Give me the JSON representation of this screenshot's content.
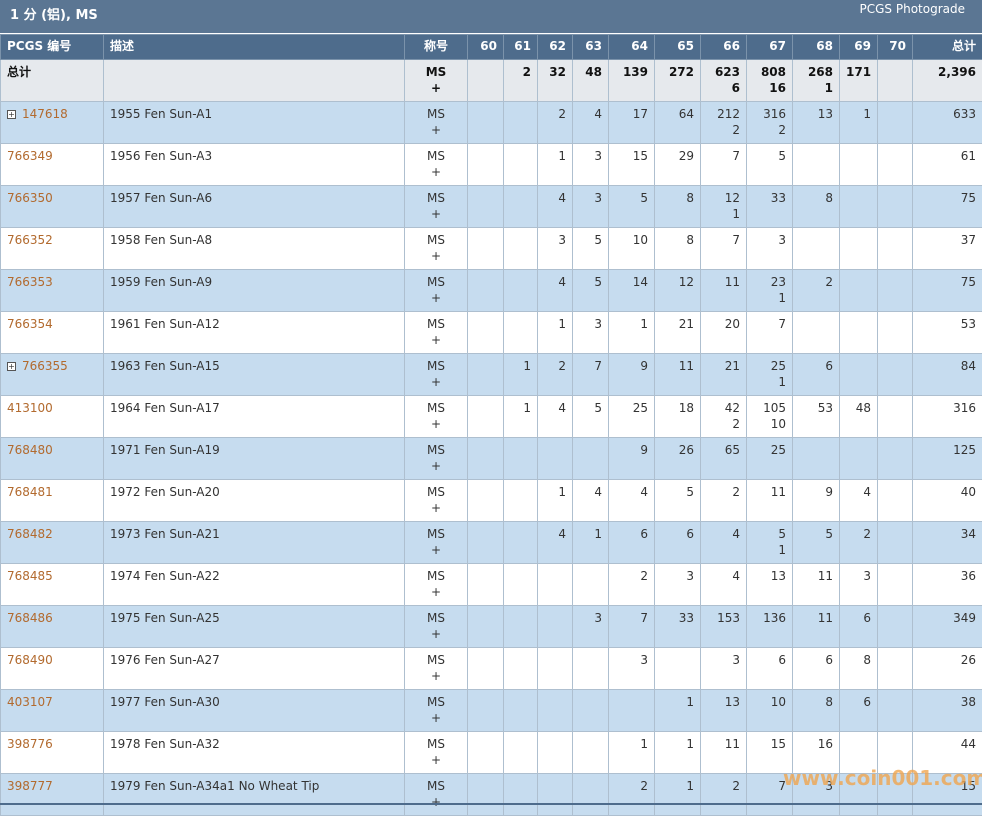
{
  "header": {
    "title": "1 分 (铝), MS",
    "photograde_link": "PCGS Photograde"
  },
  "columns": {
    "pcgs_no": "PCGS 编号",
    "description": "描述",
    "designation": "称号",
    "grades": [
      "60",
      "61",
      "62",
      "63",
      "64",
      "65",
      "66",
      "67",
      "68",
      "69",
      "70"
    ],
    "total": "总计"
  },
  "total_row": {
    "label": "总计",
    "designation": "MS",
    "plus": "+",
    "grades": [
      [
        "",
        ""
      ],
      [
        "2",
        ""
      ],
      [
        "32",
        ""
      ],
      [
        "48",
        ""
      ],
      [
        "139",
        ""
      ],
      [
        "272",
        ""
      ],
      [
        "623",
        "6"
      ],
      [
        "808",
        "16"
      ],
      [
        "268",
        "1"
      ],
      [
        "171",
        ""
      ],
      [
        "",
        ""
      ]
    ],
    "total": "2,396"
  },
  "rows": [
    {
      "id": "147618",
      "desc": "1955 Fen Sun-A1",
      "designation": "MS",
      "plus": "+",
      "grades": [
        [
          "",
          ""
        ],
        [
          "",
          ""
        ],
        [
          "2",
          ""
        ],
        [
          "4",
          ""
        ],
        [
          "17",
          ""
        ],
        [
          "64",
          ""
        ],
        [
          "212",
          "2"
        ],
        [
          "316",
          "2"
        ],
        [
          "13",
          ""
        ],
        [
          "1",
          ""
        ],
        [
          "",
          ""
        ]
      ],
      "total": "633",
      "expand": "+"
    },
    {
      "id": "766349",
      "desc": "1956 Fen Sun-A3",
      "designation": "MS",
      "plus": "+",
      "grades": [
        [
          "",
          ""
        ],
        [
          "",
          ""
        ],
        [
          "1",
          ""
        ],
        [
          "3",
          ""
        ],
        [
          "15",
          ""
        ],
        [
          "29",
          ""
        ],
        [
          "7",
          ""
        ],
        [
          "5",
          ""
        ],
        [
          "",
          ""
        ],
        [
          "",
          ""
        ],
        [
          "",
          ""
        ]
      ],
      "total": "61"
    },
    {
      "id": "766350",
      "desc": "1957 Fen Sun-A6",
      "designation": "MS",
      "plus": "+",
      "grades": [
        [
          "",
          ""
        ],
        [
          "",
          ""
        ],
        [
          "4",
          ""
        ],
        [
          "3",
          ""
        ],
        [
          "5",
          ""
        ],
        [
          "8",
          ""
        ],
        [
          "12",
          "1"
        ],
        [
          "33",
          ""
        ],
        [
          "8",
          ""
        ],
        [
          "",
          ""
        ],
        [
          "",
          ""
        ]
      ],
      "total": "75"
    },
    {
      "id": "766352",
      "desc": "1958 Fen Sun-A8",
      "designation": "MS",
      "plus": "+",
      "grades": [
        [
          "",
          ""
        ],
        [
          "",
          ""
        ],
        [
          "3",
          ""
        ],
        [
          "5",
          ""
        ],
        [
          "10",
          ""
        ],
        [
          "8",
          ""
        ],
        [
          "7",
          ""
        ],
        [
          "3",
          ""
        ],
        [
          "",
          ""
        ],
        [
          "",
          ""
        ],
        [
          "",
          ""
        ]
      ],
      "total": "37"
    },
    {
      "id": "766353",
      "desc": "1959 Fen Sun-A9",
      "designation": "MS",
      "plus": "+",
      "grades": [
        [
          "",
          ""
        ],
        [
          "",
          ""
        ],
        [
          "4",
          ""
        ],
        [
          "5",
          ""
        ],
        [
          "14",
          ""
        ],
        [
          "12",
          ""
        ],
        [
          "11",
          ""
        ],
        [
          "23",
          "1"
        ],
        [
          "2",
          ""
        ],
        [
          "",
          ""
        ],
        [
          "",
          ""
        ]
      ],
      "total": "75"
    },
    {
      "id": "766354",
      "desc": "1961 Fen Sun-A12",
      "designation": "MS",
      "plus": "+",
      "grades": [
        [
          "",
          ""
        ],
        [
          "",
          ""
        ],
        [
          "1",
          ""
        ],
        [
          "3",
          ""
        ],
        [
          "1",
          ""
        ],
        [
          "21",
          ""
        ],
        [
          "20",
          ""
        ],
        [
          "7",
          ""
        ],
        [
          "",
          ""
        ],
        [
          "",
          ""
        ],
        [
          "",
          ""
        ]
      ],
      "total": "53"
    },
    {
      "id": "766355",
      "desc": "1963 Fen Sun-A15",
      "designation": "MS",
      "plus": "+",
      "grades": [
        [
          "",
          ""
        ],
        [
          "1",
          ""
        ],
        [
          "2",
          ""
        ],
        [
          "7",
          ""
        ],
        [
          "9",
          ""
        ],
        [
          "11",
          ""
        ],
        [
          "21",
          ""
        ],
        [
          "25",
          "1"
        ],
        [
          "6",
          ""
        ],
        [
          "",
          ""
        ],
        [
          "",
          ""
        ]
      ],
      "total": "84",
      "expand": "+"
    },
    {
      "id": "413100",
      "desc": "1964 Fen Sun-A17",
      "designation": "MS",
      "plus": "+",
      "grades": [
        [
          "",
          ""
        ],
        [
          "1",
          ""
        ],
        [
          "4",
          ""
        ],
        [
          "5",
          ""
        ],
        [
          "25",
          ""
        ],
        [
          "18",
          ""
        ],
        [
          "42",
          "2"
        ],
        [
          "105",
          "10"
        ],
        [
          "53",
          ""
        ],
        [
          "48",
          ""
        ],
        [
          "",
          ""
        ]
      ],
      "total": "316"
    },
    {
      "id": "768480",
      "desc": "1971 Fen Sun-A19",
      "designation": "MS",
      "plus": "+",
      "grades": [
        [
          "",
          ""
        ],
        [
          "",
          ""
        ],
        [
          "",
          ""
        ],
        [
          "",
          ""
        ],
        [
          "9",
          ""
        ],
        [
          "26",
          ""
        ],
        [
          "65",
          ""
        ],
        [
          "25",
          ""
        ],
        [
          "",
          ""
        ],
        [
          "",
          ""
        ],
        [
          "",
          ""
        ]
      ],
      "total": "125"
    },
    {
      "id": "768481",
      "desc": "1972 Fen Sun-A20",
      "designation": "MS",
      "plus": "+",
      "grades": [
        [
          "",
          ""
        ],
        [
          "",
          ""
        ],
        [
          "1",
          ""
        ],
        [
          "4",
          ""
        ],
        [
          "4",
          ""
        ],
        [
          "5",
          ""
        ],
        [
          "2",
          ""
        ],
        [
          "11",
          ""
        ],
        [
          "9",
          ""
        ],
        [
          "4",
          ""
        ],
        [
          "",
          ""
        ]
      ],
      "total": "40"
    },
    {
      "id": "768482",
      "desc": "1973 Fen Sun-A21",
      "designation": "MS",
      "plus": "+",
      "grades": [
        [
          "",
          ""
        ],
        [
          "",
          ""
        ],
        [
          "4",
          ""
        ],
        [
          "1",
          ""
        ],
        [
          "6",
          ""
        ],
        [
          "6",
          ""
        ],
        [
          "4",
          ""
        ],
        [
          "5",
          "1"
        ],
        [
          "5",
          ""
        ],
        [
          "2",
          ""
        ],
        [
          "",
          ""
        ]
      ],
      "total": "34"
    },
    {
      "id": "768485",
      "desc": "1974 Fen Sun-A22",
      "designation": "MS",
      "plus": "+",
      "grades": [
        [
          "",
          ""
        ],
        [
          "",
          ""
        ],
        [
          "",
          ""
        ],
        [
          "",
          ""
        ],
        [
          "2",
          ""
        ],
        [
          "3",
          ""
        ],
        [
          "4",
          ""
        ],
        [
          "13",
          ""
        ],
        [
          "11",
          ""
        ],
        [
          "3",
          ""
        ],
        [
          "",
          ""
        ]
      ],
      "total": "36"
    },
    {
      "id": "768486",
      "desc": "1975 Fen Sun-A25",
      "designation": "MS",
      "plus": "+",
      "grades": [
        [
          "",
          ""
        ],
        [
          "",
          ""
        ],
        [
          "",
          ""
        ],
        [
          "3",
          ""
        ],
        [
          "7",
          ""
        ],
        [
          "33",
          ""
        ],
        [
          "153",
          ""
        ],
        [
          "136",
          ""
        ],
        [
          "11",
          ""
        ],
        [
          "6",
          ""
        ],
        [
          "",
          ""
        ]
      ],
      "total": "349"
    },
    {
      "id": "768490",
      "desc": "1976 Fen Sun-A27",
      "designation": "MS",
      "plus": "+",
      "grades": [
        [
          "",
          ""
        ],
        [
          "",
          ""
        ],
        [
          "",
          ""
        ],
        [
          "",
          ""
        ],
        [
          "3",
          ""
        ],
        [
          "",
          ""
        ],
        [
          "3",
          ""
        ],
        [
          "6",
          ""
        ],
        [
          "6",
          ""
        ],
        [
          "8",
          ""
        ],
        [
          "",
          ""
        ]
      ],
      "total": "26"
    },
    {
      "id": "403107",
      "desc": "1977 Fen Sun-A30",
      "designation": "MS",
      "plus": "+",
      "grades": [
        [
          "",
          ""
        ],
        [
          "",
          ""
        ],
        [
          "",
          ""
        ],
        [
          "",
          ""
        ],
        [
          "",
          ""
        ],
        [
          "1",
          ""
        ],
        [
          "13",
          ""
        ],
        [
          "10",
          ""
        ],
        [
          "8",
          ""
        ],
        [
          "6",
          ""
        ],
        [
          "",
          ""
        ]
      ],
      "total": "38"
    },
    {
      "id": "398776",
      "desc": "1978 Fen Sun-A32",
      "designation": "MS",
      "plus": "+",
      "grades": [
        [
          "",
          ""
        ],
        [
          "",
          ""
        ],
        [
          "",
          ""
        ],
        [
          "",
          ""
        ],
        [
          "1",
          ""
        ],
        [
          "1",
          ""
        ],
        [
          "11",
          ""
        ],
        [
          "15",
          ""
        ],
        [
          "16",
          ""
        ],
        [
          "",
          ""
        ],
        [
          "",
          ""
        ]
      ],
      "total": "44"
    },
    {
      "id": "398777",
      "desc": "1979 Fen Sun-A34a1 No Wheat Tip",
      "designation": "MS",
      "plus": "+",
      "grades": [
        [
          "",
          ""
        ],
        [
          "",
          ""
        ],
        [
          "",
          ""
        ],
        [
          "",
          ""
        ],
        [
          "2",
          ""
        ],
        [
          "1",
          ""
        ],
        [
          "2",
          ""
        ],
        [
          "7",
          ""
        ],
        [
          "3",
          ""
        ],
        [
          "",
          ""
        ],
        [
          "",
          ""
        ]
      ],
      "total": "15"
    }
  ],
  "watermark": "www.coin001.com"
}
